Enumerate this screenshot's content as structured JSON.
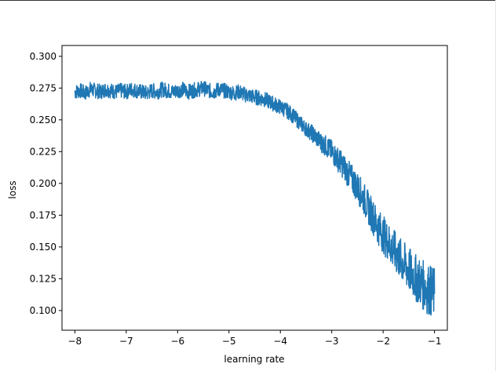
{
  "chart_data": {
    "type": "line",
    "title": "",
    "xlabel": "learning rate",
    "ylabel": "loss",
    "xlim": [
      -8.25,
      -0.75
    ],
    "ylim": [
      0.0845,
      0.3085
    ],
    "xticks": [
      {
        "value": -8,
        "label": "−8"
      },
      {
        "value": -7,
        "label": "−7"
      },
      {
        "value": -6,
        "label": "−6"
      },
      {
        "value": -5,
        "label": "−5"
      },
      {
        "value": -4,
        "label": "−4"
      },
      {
        "value": -3,
        "label": "−3"
      },
      {
        "value": -2,
        "label": "−2"
      },
      {
        "value": -1,
        "label": "−1"
      }
    ],
    "yticks": [
      {
        "value": 0.3,
        "label": "0.300"
      },
      {
        "value": 0.275,
        "label": "0.275"
      },
      {
        "value": 0.25,
        "label": "0.250"
      },
      {
        "value": 0.225,
        "label": "0.225"
      },
      {
        "value": 0.2,
        "label": "0.200"
      },
      {
        "value": 0.175,
        "label": "0.175"
      },
      {
        "value": 0.15,
        "label": "0.150"
      },
      {
        "value": 0.125,
        "label": "0.125"
      },
      {
        "value": 0.1,
        "label": "0.100"
      }
    ],
    "grid": false,
    "series": [
      {
        "color": "#1f77b4",
        "x": [
          -8.0,
          -7.9,
          -7.8,
          -7.7,
          -7.6,
          -7.5,
          -7.4,
          -7.3,
          -7.2,
          -7.1,
          -7.0,
          -6.9,
          -6.8,
          -6.7,
          -6.6,
          -6.5,
          -6.4,
          -6.3,
          -6.2,
          -6.1,
          -6.0,
          -5.9,
          -5.8,
          -5.7,
          -5.6,
          -5.5,
          -5.4,
          -5.3,
          -5.2,
          -5.1,
          -5.0,
          -4.9,
          -4.8,
          -4.7,
          -4.6,
          -4.5,
          -4.4,
          -4.3,
          -4.2,
          -4.1,
          -4.0,
          -3.9,
          -3.8,
          -3.7,
          -3.6,
          -3.5,
          -3.4,
          -3.3,
          -3.2,
          -3.1,
          -3.0,
          -2.9,
          -2.8,
          -2.7,
          -2.6,
          -2.5,
          -2.4,
          -2.3,
          -2.2,
          -2.1,
          -2.0,
          -1.9,
          -1.8,
          -1.7,
          -1.6,
          -1.5,
          -1.4,
          -1.3,
          -1.2,
          -1.1,
          -1.0
        ],
        "y": [
          0.272,
          0.273,
          0.271,
          0.274,
          0.273,
          0.272,
          0.274,
          0.273,
          0.272,
          0.273,
          0.272,
          0.274,
          0.273,
          0.272,
          0.271,
          0.273,
          0.272,
          0.274,
          0.273,
          0.272,
          0.273,
          0.274,
          0.272,
          0.273,
          0.274,
          0.275,
          0.273,
          0.272,
          0.274,
          0.273,
          0.272,
          0.271,
          0.272,
          0.27,
          0.269,
          0.268,
          0.267,
          0.266,
          0.264,
          0.262,
          0.26,
          0.258,
          0.255,
          0.251,
          0.247,
          0.243,
          0.24,
          0.236,
          0.232,
          0.229,
          0.225,
          0.22,
          0.215,
          0.209,
          0.203,
          0.197,
          0.19,
          0.182,
          0.174,
          0.166,
          0.16,
          0.154,
          0.148,
          0.142,
          0.137,
          0.132,
          0.127,
          0.123,
          0.119,
          0.116,
          0.113
        ]
      }
    ]
  }
}
